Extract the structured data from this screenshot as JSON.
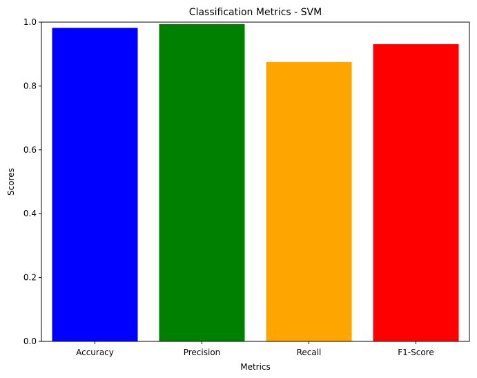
{
  "chart_data": {
    "type": "bar",
    "title": "Classification Metrics - SVM",
    "xlabel": "Metrics",
    "ylabel": "Scores",
    "categories": [
      "Accuracy",
      "Precision",
      "Recall",
      "F1-Score"
    ],
    "values": [
      0.982,
      0.994,
      0.875,
      0.931
    ],
    "colors": [
      "#0000ff",
      "#008000",
      "#ffa500",
      "#ff0000"
    ],
    "ylim": [
      0,
      1.0
    ],
    "yticks": [
      "0.0",
      "0.2",
      "0.4",
      "0.6",
      "0.8",
      "1.0"
    ],
    "grid": false,
    "legend": "none"
  }
}
